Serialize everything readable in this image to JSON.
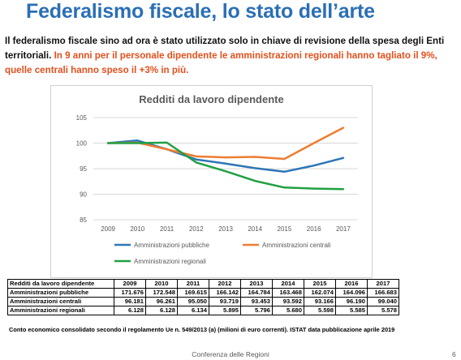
{
  "slide": {
    "title": "Federalismo fiscale, lo stato dell’arte",
    "intro_black": "Il federalismo fiscale sino ad ora è stato utilizzato solo in chiave di revisione della spesa degli Enti territoriali. ",
    "intro_highlight": "In 9 anni per il personale dipendente le amministrazioni regionali hanno tagliato il 9%, quelle centrali hanno speso il +3% in più.",
    "source_note": "Conto economico consolidato secondo il regolamento Ue n. 549/2013 (a) (milioni di euro correnti). ISTAT data pubblicazione aprile 2019",
    "footer": "Conferenza delle Regioni",
    "page_number": "6"
  },
  "colors": {
    "title": "#2a6fb5",
    "highlight": "#e3501c",
    "pubbliche": "#2e75b6",
    "centrali": "#ed7d31",
    "regionali": "#21a044"
  },
  "chart_data": {
    "type": "line",
    "title": "Redditi da lavoro dipendente",
    "x": [
      "2009",
      "2010",
      "2011",
      "2012",
      "2013",
      "2014",
      "2015",
      "2016",
      "2017"
    ],
    "ylim": [
      85,
      105
    ],
    "yticks": [
      85,
      90,
      95,
      100,
      105
    ],
    "grid": true,
    "legend_position": "bottom",
    "series": [
      {
        "name": "Amministrazioni pubbliche",
        "color": "#2e75b6",
        "values": [
          100,
          100.5,
          98.8,
          96.8,
          96.0,
          95.1,
          94.4,
          95.6,
          97.1
        ]
      },
      {
        "name": "Amministrazioni centrali",
        "color": "#ed7d31",
        "values": [
          100,
          100.1,
          98.8,
          97.4,
          97.2,
          97.3,
          96.9,
          100.0,
          103.0
        ]
      },
      {
        "name": "Amministrazioni regionali",
        "color": "#21a044",
        "values": [
          100,
          100.0,
          100.1,
          96.2,
          94.5,
          92.6,
          91.3,
          91.1,
          91.0
        ]
      }
    ]
  },
  "table": {
    "header": [
      "Redditi da lavoro dipendente",
      "2009",
      "2010",
      "2011",
      "2012",
      "2013",
      "2014",
      "2015",
      "2016",
      "2017"
    ],
    "rows": [
      [
        "Amministrazioni pubbliche",
        "171.676",
        "172.548",
        "169.615",
        "166.142",
        "164.784",
        "163.468",
        "162.074",
        "164.096",
        "166.683"
      ],
      [
        "Amministrazioni centrali",
        "96.181",
        "96.261",
        "95.050",
        "93.719",
        "93.453",
        "93.592",
        "93.166",
        "96.190",
        "99.040"
      ],
      [
        "Amministrazioni regionali",
        "6.128",
        "6.128",
        "6.134",
        "5.895",
        "5.796",
        "5.680",
        "5.598",
        "5.585",
        "5.578"
      ]
    ]
  }
}
